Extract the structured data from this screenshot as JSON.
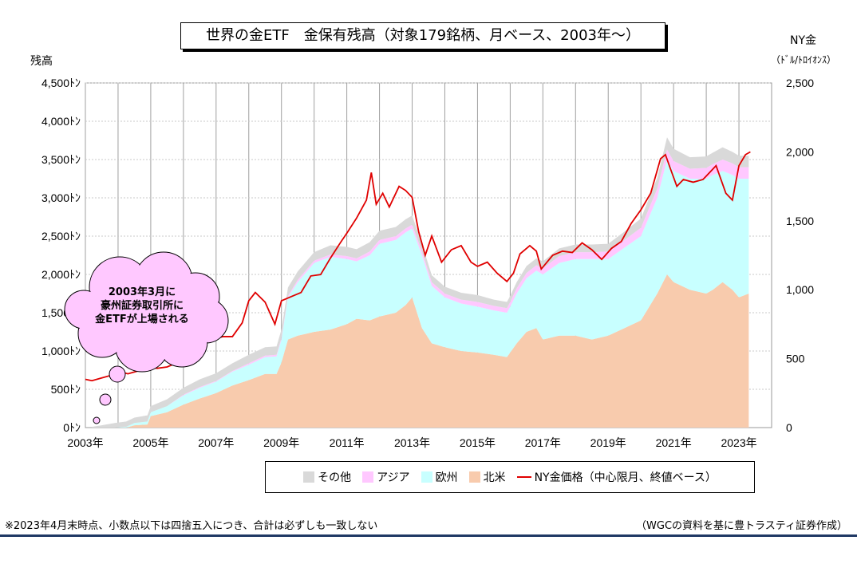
{
  "title": "世界の金ETF　金保有残高（対象179銘柄、月ベース、2003年～）",
  "left_axis_title": "残高",
  "right_axis_title": "NY金",
  "right_axis_unit": "（ﾄﾞﾙ/ﾄﾛｲｵﾝｽ）",
  "callout": {
    "line1": "2003年3月に",
    "line2": "豪州証券取引所に",
    "line3": "金ETFが上場される"
  },
  "legend": {
    "other": "その他",
    "asia": "アジア",
    "europe": "欧州",
    "north_america": "北米",
    "price": "NY金価格（中心限月、終値ベース）"
  },
  "footnote_left": "※2023年4月末時点、小数点以下は四捨五入につき、合計は必ずしも一致しない",
  "footnote_right": "（WGCの資料を基に豊トラスティ証券作成）",
  "colors": {
    "other": "#d9d9d9",
    "asia": "#ffc8ff",
    "europe": "#c8ffff",
    "north_america": "#f8cbad",
    "price": "#e00000",
    "callout_fill": "#ffc8ff"
  },
  "chart_data": {
    "type": "area",
    "x_unit": "year",
    "x_tick_labels": [
      "2003年",
      "2005年",
      "2007年",
      "2009年",
      "2011年",
      "2013年",
      "2015年",
      "2017年",
      "2019年",
      "2021年",
      "2023年"
    ],
    "x_ticks": [
      2003,
      2005,
      2007,
      2009,
      2011,
      2013,
      2015,
      2017,
      2019,
      2021,
      2023
    ],
    "xlim": [
      2003.0,
      2024.0
    ],
    "ylim_left": [
      0,
      4500
    ],
    "y_left_ticks": [
      0,
      500,
      1000,
      1500,
      2000,
      2500,
      3000,
      3500,
      4000,
      4500
    ],
    "y_left_tick_labels": [
      "0ﾄﾝ",
      "500ﾄﾝ",
      "1,000ﾄﾝ",
      "1,500ﾄﾝ",
      "2,000ﾄﾝ",
      "2,500ﾄﾝ",
      "3,000ﾄﾝ",
      "3,500ﾄﾝ",
      "4,000ﾄﾝ",
      "4,500ﾄﾝ"
    ],
    "ylim_right": [
      0,
      2500
    ],
    "y_right_ticks": [
      0,
      500,
      1000,
      1500,
      2000,
      2500
    ],
    "y_right_tick_labels": [
      "0",
      "500",
      "1,000",
      "1,500",
      "2,000",
      "2,500"
    ],
    "grid": "vertical",
    "x": [
      2003.2,
      2003.5,
      2003.9,
      2004.25,
      2004.5,
      2004.9,
      2005.0,
      2005.5,
      2006.0,
      2006.5,
      2007.0,
      2007.5,
      2008.0,
      2008.5,
      2008.85,
      2009.0,
      2009.2,
      2009.5,
      2010.0,
      2010.5,
      2011.0,
      2011.3,
      2011.7,
      2012.0,
      2012.5,
      2012.8,
      2013.0,
      2013.3,
      2013.6,
      2014.0,
      2014.5,
      2015.0,
      2015.5,
      2015.9,
      2016.0,
      2016.2,
      2016.5,
      2016.8,
      2017.0,
      2017.5,
      2018.0,
      2018.5,
      2019.0,
      2019.5,
      2020.0,
      2020.5,
      2020.8,
      2021.0,
      2021.5,
      2022.0,
      2022.2,
      2022.5,
      2022.8,
      2023.0,
      2023.3
    ],
    "series": [
      {
        "name": "北米",
        "values": [
          0,
          0,
          0,
          0,
          30,
          40,
          150,
          200,
          300,
          380,
          450,
          550,
          620,
          700,
          700,
          850,
          1150,
          1200,
          1250,
          1280,
          1350,
          1420,
          1400,
          1450,
          1500,
          1600,
          1700,
          1300,
          1100,
          1050,
          1000,
          980,
          950,
          920,
          980,
          1100,
          1250,
          1300,
          1150,
          1200,
          1200,
          1150,
          1200,
          1300,
          1400,
          1750,
          2000,
          1900,
          1800,
          1750,
          1800,
          1900,
          1800,
          1700,
          1750
        ]
      },
      {
        "name": "欧州",
        "values": [
          0,
          0,
          0,
          10,
          30,
          40,
          50,
          80,
          120,
          140,
          150,
          180,
          200,
          220,
          230,
          300,
          550,
          700,
          900,
          950,
          850,
          750,
          850,
          950,
          950,
          950,
          900,
          950,
          750,
          650,
          620,
          600,
          580,
          580,
          600,
          650,
          700,
          750,
          850,
          950,
          1000,
          1050,
          1000,
          1050,
          1100,
          1250,
          1500,
          1450,
          1450,
          1500,
          1500,
          1450,
          1500,
          1550,
          1500
        ]
      },
      {
        "name": "アジア",
        "values": [
          0,
          0,
          0,
          0,
          0,
          0,
          0,
          0,
          10,
          10,
          10,
          10,
          20,
          20,
          20,
          20,
          20,
          30,
          30,
          30,
          40,
          40,
          50,
          50,
          50,
          50,
          50,
          50,
          50,
          50,
          50,
          60,
          60,
          60,
          60,
          70,
          70,
          70,
          80,
          90,
          90,
          90,
          100,
          100,
          110,
          120,
          130,
          130,
          130,
          140,
          140,
          150,
          150,
          150,
          150
        ]
      },
      {
        "name": "その他",
        "values": [
          10,
          30,
          60,
          70,
          70,
          80,
          80,
          90,
          90,
          100,
          100,
          100,
          110,
          110,
          110,
          110,
          110,
          110,
          110,
          120,
          120,
          120,
          120,
          120,
          120,
          120,
          120,
          100,
          90,
          90,
          90,
          90,
          80,
          80,
          80,
          80,
          90,
          90,
          90,
          100,
          100,
          100,
          100,
          110,
          120,
          140,
          160,
          160,
          150,
          150,
          150,
          160,
          150,
          150,
          150
        ]
      }
    ],
    "price_series": {
      "name": "NY金価格（中心限月、終値ベース）",
      "axis": "right",
      "x": [
        2003.0,
        2003.2,
        2003.5,
        2003.8,
        2004.0,
        2004.3,
        2004.6,
        2004.9,
        2005.2,
        2005.5,
        2005.8,
        2006.0,
        2006.3,
        2006.6,
        2006.9,
        2007.2,
        2007.5,
        2007.8,
        2008.0,
        2008.2,
        2008.5,
        2008.8,
        2009.0,
        2009.3,
        2009.6,
        2009.9,
        2010.2,
        2010.5,
        2010.8,
        2011.0,
        2011.3,
        2011.6,
        2011.75,
        2011.9,
        2012.1,
        2012.3,
        2012.6,
        2012.8,
        2013.0,
        2013.2,
        2013.4,
        2013.6,
        2013.9,
        2014.2,
        2014.5,
        2014.8,
        2015.0,
        2015.3,
        2015.6,
        2015.9,
        2016.1,
        2016.3,
        2016.6,
        2016.8,
        2016.95,
        2017.3,
        2017.6,
        2017.9,
        2018.2,
        2018.5,
        2018.8,
        2019.1,
        2019.4,
        2019.7,
        2020.0,
        2020.3,
        2020.6,
        2020.75,
        2020.9,
        2021.1,
        2021.3,
        2021.6,
        2021.9,
        2022.1,
        2022.3,
        2022.6,
        2022.8,
        2023.0,
        2023.2,
        2023.35
      ],
      "values": [
        350,
        340,
        360,
        380,
        410,
        390,
        410,
        440,
        430,
        440,
        470,
        550,
        620,
        610,
        640,
        660,
        660,
        760,
        920,
        980,
        910,
        750,
        920,
        950,
        980,
        1100,
        1110,
        1230,
        1340,
        1410,
        1520,
        1650,
        1850,
        1620,
        1700,
        1600,
        1750,
        1720,
        1670,
        1420,
        1250,
        1390,
        1200,
        1290,
        1320,
        1200,
        1170,
        1200,
        1120,
        1060,
        1120,
        1260,
        1320,
        1280,
        1150,
        1250,
        1280,
        1270,
        1340,
        1290,
        1220,
        1300,
        1350,
        1480,
        1580,
        1700,
        1950,
        1980,
        1880,
        1750,
        1800,
        1780,
        1800,
        1850,
        1900,
        1700,
        1650,
        1900,
        1980,
        2000
      ]
    }
  }
}
